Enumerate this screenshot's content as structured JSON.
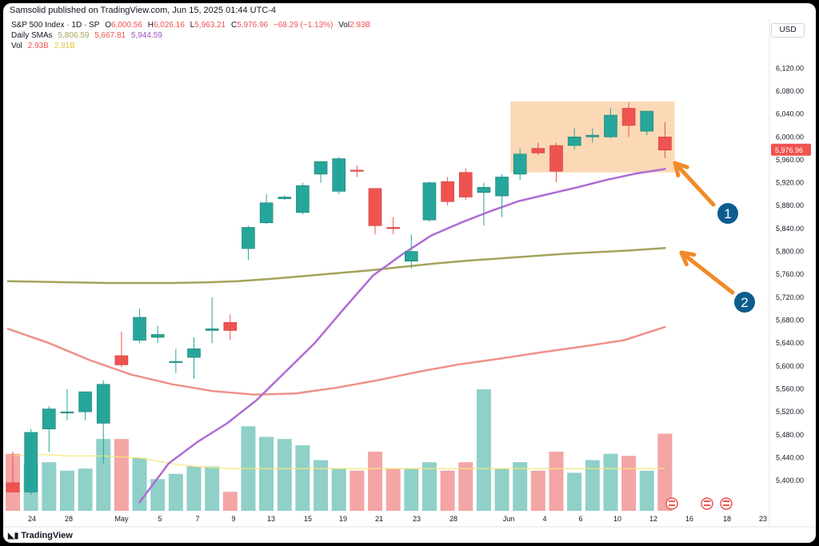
{
  "header": {
    "published": "Samsolid published on TradingView.com, Jun 15, 2025 01:44 UTC-4"
  },
  "legend": {
    "symbol": "S&P 500 Index · 1D · SP",
    "ohlc": {
      "o_label": "O",
      "o": "6,000.56",
      "h_label": "H",
      "h": "6,026.16",
      "l_label": "L",
      "l": "5,963.21",
      "c_label": "C",
      "c": "5,976.96",
      "chg": "−68.29 (−1.13%)",
      "vol_label": "Vol",
      "vol": "2.93B"
    },
    "sma_label": "Daily SMAs",
    "sma_values": [
      "5,806.59",
      "5,667.81",
      "5,944.59"
    ],
    "vol_row_label": "Vol",
    "vol_values": [
      "2.93B",
      "2.81B"
    ]
  },
  "currency": "USD",
  "brand": "TradingView",
  "colors": {
    "up": "#26a69a",
    "down": "#ef5350",
    "up_vol": "#8fd0c9",
    "down_vol": "#f4a5a5",
    "sma_olive": "#a3a45a",
    "sma_red": "#f0908a",
    "sma_purple": "#b06bd2",
    "vol_ma": "#f5e67a",
    "box": "#fbd2a9",
    "arrow": "#f08a2a",
    "marker": "#0d5c8e"
  },
  "annotations": [
    "1",
    "2"
  ],
  "chart_data": {
    "type": "candlestick",
    "y_ticks": [
      "6,120.00",
      "6,080.00",
      "6,040.00",
      "6,000.00",
      "5,960.00",
      "5,920.00",
      "5,880.00",
      "5,840.00",
      "5,800.00",
      "5,760.00",
      "5,720.00",
      "5,680.00",
      "5,640.00",
      "5,600.00",
      "5,560.00",
      "5,520.00",
      "5,480.00",
      "5,440.00",
      "5,400.00"
    ],
    "ylim": [
      5375,
      6140
    ],
    "last_price_label": "5,976.96",
    "x_ticks": [
      "24",
      "28",
      "May",
      "5",
      "7",
      "9",
      "13",
      "15",
      "19",
      "21",
      "23",
      "28",
      "Jun",
      "4",
      "6",
      "10",
      "12",
      "16",
      "18",
      "23"
    ],
    "candles": [
      {
        "o": 5396,
        "h": 5450,
        "l": 5380,
        "c": 5380
      },
      {
        "o": 5380,
        "h": 5490,
        "l": 5375,
        "c": 5484
      },
      {
        "o": 5490,
        "h": 5530,
        "l": 5450,
        "c": 5525
      },
      {
        "o": 5520,
        "h": 5560,
        "l": 5505,
        "c": 5520
      },
      {
        "o": 5520,
        "h": 5555,
        "l": 5505,
        "c": 5555
      },
      {
        "o": 5500,
        "h": 5575,
        "l": 5430,
        "c": 5568
      },
      {
        "o": 5618,
        "h": 5660,
        "l": 5598,
        "c": 5602
      },
      {
        "o": 5645,
        "h": 5700,
        "l": 5640,
        "c": 5685
      },
      {
        "o": 5650,
        "h": 5670,
        "l": 5640,
        "c": 5655
      },
      {
        "o": 5608,
        "h": 5630,
        "l": 5588,
        "c": 5608
      },
      {
        "o": 5615,
        "h": 5650,
        "l": 5578,
        "c": 5630
      },
      {
        "o": 5662,
        "h": 5720,
        "l": 5640,
        "c": 5665
      },
      {
        "o": 5676,
        "h": 5690,
        "l": 5645,
        "c": 5662
      },
      {
        "o": 5805,
        "h": 5845,
        "l": 5785,
        "c": 5842
      },
      {
        "o": 5850,
        "h": 5900,
        "l": 5848,
        "c": 5885
      },
      {
        "o": 5892,
        "h": 5898,
        "l": 5890,
        "c": 5895
      },
      {
        "o": 5868,
        "h": 5920,
        "l": 5865,
        "c": 5915
      },
      {
        "o": 5935,
        "h": 5958,
        "l": 5920,
        "c": 5957
      },
      {
        "o": 5905,
        "h": 5965,
        "l": 5900,
        "c": 5962
      },
      {
        "o": 5942,
        "h": 5950,
        "l": 5930,
        "c": 5940
      },
      {
        "o": 5910,
        "h": 5910,
        "l": 5830,
        "c": 5845
      },
      {
        "o": 5842,
        "h": 5860,
        "l": 5830,
        "c": 5841
      },
      {
        "o": 5783,
        "h": 5830,
        "l": 5770,
        "c": 5800
      },
      {
        "o": 5855,
        "h": 5922,
        "l": 5852,
        "c": 5920
      },
      {
        "o": 5922,
        "h": 5930,
        "l": 5880,
        "c": 5887
      },
      {
        "o": 5938,
        "h": 5945,
        "l": 5890,
        "c": 5895
      },
      {
        "o": 5903,
        "h": 5920,
        "l": 5845,
        "c": 5912
      },
      {
        "o": 5897,
        "h": 5935,
        "l": 5860,
        "c": 5930
      },
      {
        "o": 5935,
        "h": 5980,
        "l": 5925,
        "c": 5970
      },
      {
        "o": 5980,
        "h": 5990,
        "l": 5968,
        "c": 5972
      },
      {
        "o": 5985,
        "h": 5990,
        "l": 5921,
        "c": 5940
      },
      {
        "o": 5985,
        "h": 6015,
        "l": 5978,
        "c": 6000
      },
      {
        "o": 6000,
        "h": 6015,
        "l": 5990,
        "c": 6003
      },
      {
        "o": 6000,
        "h": 6050,
        "l": 5998,
        "c": 6038
      },
      {
        "o": 6050,
        "h": 6060,
        "l": 6000,
        "c": 6020
      },
      {
        "o": 6010,
        "h": 6045,
        "l": 6003,
        "c": 6045
      },
      {
        "o": 6000,
        "h": 6026,
        "l": 5963,
        "c": 5977
      }
    ],
    "volume": [
      2.74,
      2.64,
      2.66,
      2.58,
      2.6,
      2.88,
      2.88,
      2.7,
      2.5,
      2.55,
      2.62,
      2.62,
      2.38,
      3.0,
      2.9,
      2.88,
      2.82,
      2.68,
      2.6,
      2.58,
      2.76,
      2.6,
      2.6,
      2.66,
      2.58,
      2.66,
      3.35,
      2.6,
      2.66,
      2.58,
      2.76,
      2.56,
      2.68,
      2.74,
      2.72,
      2.58,
      2.93
    ],
    "series_sma_olive": [
      5748,
      5747,
      5746,
      5745,
      5745,
      5745,
      5746,
      5748,
      5752,
      5757,
      5762,
      5767,
      5773,
      5779,
      5784,
      5788,
      5792,
      5796,
      5799,
      5802,
      5806
    ],
    "series_sma_red": [
      5665,
      5640,
      5610,
      5585,
      5568,
      5556,
      5550,
      5552,
      5562,
      5575,
      5590,
      5603,
      5613,
      5624,
      5634,
      5645,
      5668
    ],
    "series_sma_purple": [
      5362,
      5430,
      5468,
      5500,
      5540,
      5590,
      5640,
      5700,
      5758,
      5795,
      5828,
      5850,
      5870,
      5888,
      5900,
      5912,
      5925,
      5936,
      5944
    ],
    "highlight_box": {
      "x_from_candle": 28,
      "x_to_candle": 36,
      "y_from": 5938,
      "y_to": 6062
    }
  }
}
